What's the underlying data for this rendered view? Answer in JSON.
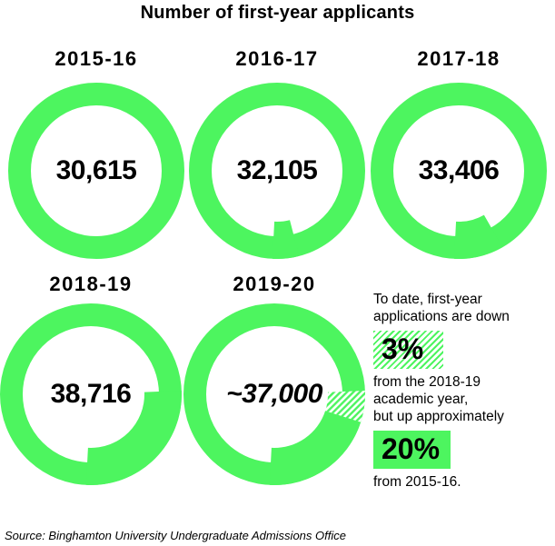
{
  "title": "Number of first-year applicants",
  "colors": {
    "green": "#4DF55F",
    "text": "#000000",
    "background": "#ffffff"
  },
  "chart_data": {
    "type": "donut",
    "title": "Number of first-year applicants",
    "base_year": "2015-16",
    "base_value": 30615,
    "categories": [
      "2015-16",
      "2016-17",
      "2017-18",
      "2018-19",
      "2019-20"
    ],
    "values": [
      30615,
      32105,
      33406,
      38716,
      37000
    ],
    "years": [
      {
        "label": "2015-16",
        "value": 30615,
        "display": "30,615",
        "approx": false
      },
      {
        "label": "2016-17",
        "value": 32105,
        "display": "32,105",
        "approx": false
      },
      {
        "label": "2017-18",
        "value": 33406,
        "display": "33,406",
        "approx": false
      },
      {
        "label": "2018-19",
        "value": 38716,
        "display": "38,716",
        "approx": false
      },
      {
        "label": "2019-20",
        "value": 37000,
        "display": "~37,000",
        "approx": true,
        "hatch_to_value": 38716
      }
    ],
    "encoding_note": "Thick bump arc on each ring = percent growth vs 2015-16 base (3.6 deg per percent), ending at ~183 deg clockwise from top; hatched arc on 2019-20 = shortfall from 38,716 to ~37,000",
    "legend_position": "none",
    "grid": false
  },
  "annotation": {
    "line1": "To date, first-year",
    "line2": "applications are down",
    "down_pct": "3%",
    "line3": "from the 2018-19",
    "line4": "academic year,",
    "line5": "but up approximately",
    "up_pct": "20%",
    "line6": "from 2015-16."
  },
  "source": "Source: Binghamton University Undergraduate Admissions Office"
}
